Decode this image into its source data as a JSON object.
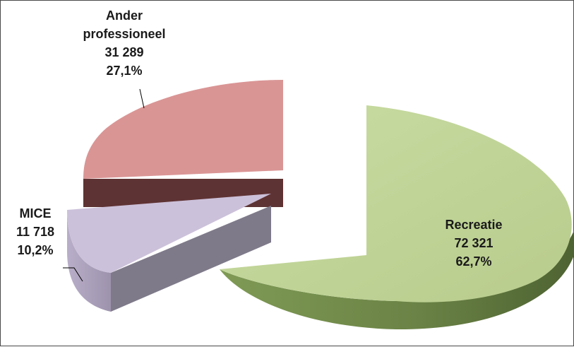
{
  "chart_data": {
    "type": "pie",
    "style": "3d-exploded",
    "slices": [
      {
        "label": "Recreatie",
        "value": "72 321",
        "percent": "62,7%",
        "color": "#c3d69b"
      },
      {
        "label": "MICE",
        "value": "11 718",
        "percent": "10,2%",
        "color": "#ccc1da"
      },
      {
        "label_line1": "Ander",
        "label_line2": "professioneel",
        "value": "31 289",
        "percent": "27,1%",
        "color": "#d99594"
      }
    ],
    "legend": "none"
  }
}
